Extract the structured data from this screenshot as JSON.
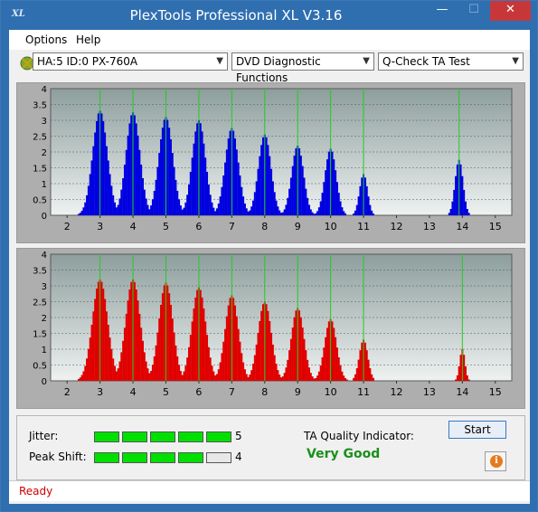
{
  "window": {
    "title": "PlexTools Professional XL V3.16",
    "app_icon_text": "XL",
    "minimize_glyph": "—",
    "maximize_glyph": "☐",
    "close_glyph": "✕"
  },
  "menu": {
    "items": [
      "Options",
      "Help"
    ]
  },
  "toolbar": {
    "device": "HA:5 ID:0  PX-760A",
    "function": "DVD Diagnostic Functions",
    "test": "Q-Check TA Test"
  },
  "colors": {
    "top_bars": "#0000e0",
    "bottom_bars": "#e00000",
    "grid_lines": "#22cc22",
    "plot_bg_top": "#8d9e9c",
    "plot_bg_bottom": "#eef2f1"
  },
  "chart_data": [
    {
      "type": "bar",
      "name": "top",
      "xlim": [
        1.5,
        15.5
      ],
      "ylim": [
        0,
        4
      ],
      "x_ticks": [
        "2",
        "3",
        "4",
        "5",
        "6",
        "7",
        "8",
        "9",
        "10",
        "11",
        "12",
        "13",
        "14",
        "15"
      ],
      "y_ticks": [
        "0",
        "0.5",
        "1",
        "1.5",
        "2",
        "2.5",
        "3",
        "3.5",
        "4"
      ],
      "peaks": [
        {
          "center": 3.0,
          "height": 3.3,
          "width": 0.22
        },
        {
          "center": 4.0,
          "height": 3.25,
          "width": 0.21
        },
        {
          "center": 5.0,
          "height": 3.1,
          "width": 0.21
        },
        {
          "center": 6.0,
          "height": 3.0,
          "width": 0.2
        },
        {
          "center": 7.0,
          "height": 2.75,
          "width": 0.2
        },
        {
          "center": 8.0,
          "height": 2.55,
          "width": 0.19
        },
        {
          "center": 9.0,
          "height": 2.2,
          "width": 0.18
        },
        {
          "center": 10.0,
          "height": 2.1,
          "width": 0.17
        },
        {
          "center": 11.0,
          "height": 1.3,
          "width": 0.12
        },
        {
          "center": 13.9,
          "height": 1.75,
          "width": 0.12
        }
      ]
    },
    {
      "type": "bar",
      "name": "bottom",
      "xlim": [
        1.5,
        15.5
      ],
      "ylim": [
        0,
        4
      ],
      "x_ticks": [
        "2",
        "3",
        "4",
        "5",
        "6",
        "7",
        "8",
        "9",
        "10",
        "11",
        "12",
        "13",
        "14",
        "15"
      ],
      "y_ticks": [
        "0",
        "0.5",
        "1",
        "1.5",
        "2",
        "2.5",
        "3",
        "3.5",
        "4"
      ],
      "peaks": [
        {
          "center": 3.0,
          "height": 3.2,
          "width": 0.23
        },
        {
          "center": 4.0,
          "height": 3.2,
          "width": 0.22
        },
        {
          "center": 5.0,
          "height": 3.1,
          "width": 0.21
        },
        {
          "center": 6.0,
          "height": 2.95,
          "width": 0.21
        },
        {
          "center": 7.0,
          "height": 2.7,
          "width": 0.2
        },
        {
          "center": 8.0,
          "height": 2.5,
          "width": 0.2
        },
        {
          "center": 9.0,
          "height": 2.3,
          "width": 0.19
        },
        {
          "center": 10.0,
          "height": 1.95,
          "width": 0.18
        },
        {
          "center": 11.0,
          "height": 1.3,
          "width": 0.13
        },
        {
          "center": 14.0,
          "height": 1.0,
          "width": 0.08
        }
      ]
    }
  ],
  "results": {
    "jitter_label": "Jitter:",
    "jitter_value": "5",
    "jitter_level": 5,
    "peak_shift_label": "Peak Shift:",
    "peak_shift_value": "4",
    "peak_shift_level": 4,
    "ta_label": "TA Quality Indicator:",
    "ta_value": "Very Good"
  },
  "buttons": {
    "start": "Start",
    "info": "i"
  },
  "status": {
    "text": "Ready"
  }
}
